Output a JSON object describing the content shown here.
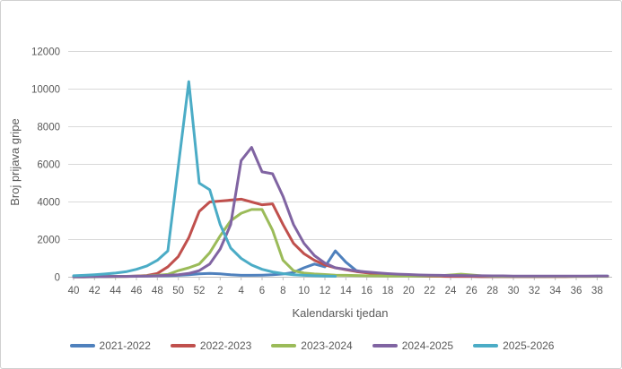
{
  "style": {
    "background": "#FFFFFF",
    "frame_border": "#D0D0D0",
    "text_color": "#595959",
    "gridline_color": "#D9D9D9",
    "axis_color": "#BFBFBF"
  },
  "chart_data": {
    "type": "line",
    "title": "",
    "xlabel": "Kalendarski tjedan",
    "ylabel": "Broj prijava gripe",
    "ylim": [
      0,
      12000
    ],
    "y_ticks": [
      0,
      2000,
      4000,
      6000,
      8000,
      10000,
      12000
    ],
    "x_tick_labels": [
      40,
      42,
      44,
      46,
      48,
      50,
      52,
      2,
      4,
      6,
      8,
      10,
      12,
      14,
      16,
      18,
      20,
      22,
      24,
      26,
      28,
      30,
      32,
      34,
      36,
      38
    ],
    "grid": "horizontal",
    "legend_position": "bottom",
    "categories": [
      40,
      41,
      42,
      43,
      44,
      45,
      46,
      47,
      48,
      49,
      50,
      51,
      52,
      1,
      2,
      3,
      4,
      5,
      6,
      7,
      8,
      9,
      10,
      11,
      12,
      13,
      14,
      15,
      16,
      17,
      18,
      19,
      20,
      21,
      22,
      23,
      24,
      25,
      26,
      27,
      28,
      29,
      30,
      31,
      32,
      33,
      34,
      35,
      36,
      37,
      38,
      39
    ],
    "series": [
      {
        "name": "2021-2022",
        "color": "#4F81BD",
        "values": [
          30,
          30,
          40,
          40,
          50,
          50,
          60,
          60,
          70,
          80,
          100,
          130,
          180,
          200,
          180,
          130,
          100,
          100,
          110,
          130,
          170,
          250,
          500,
          700,
          550,
          1400,
          800,
          350,
          250,
          180,
          130,
          90,
          70,
          60,
          50,
          50,
          40,
          40,
          40,
          30,
          30,
          30,
          30,
          30,
          30,
          30,
          40,
          40,
          50,
          50,
          60,
          60
        ]
      },
      {
        "name": "2022-2023",
        "color": "#C0504D",
        "values": [
          20,
          20,
          30,
          30,
          40,
          40,
          60,
          90,
          200,
          550,
          1100,
          2100,
          3500,
          4000,
          4050,
          4100,
          4150,
          4000,
          3850,
          3900,
          2800,
          1800,
          1250,
          900,
          650,
          500,
          400,
          300,
          230,
          170,
          120,
          90,
          70,
          60,
          50,
          50,
          40,
          40,
          40,
          30,
          30,
          30,
          30,
          30,
          30,
          30,
          30,
          30,
          40,
          40,
          50,
          50
        ]
      },
      {
        "name": "2023-2024",
        "color": "#9BBB59",
        "values": [
          20,
          20,
          20,
          30,
          30,
          40,
          50,
          70,
          100,
          150,
          350,
          500,
          700,
          1300,
          2200,
          3000,
          3400,
          3600,
          3600,
          2500,
          900,
          350,
          220,
          170,
          140,
          110,
          100,
          90,
          80,
          70,
          60,
          60,
          60,
          60,
          70,
          80,
          120,
          160,
          120,
          70,
          50,
          40,
          40,
          40,
          40,
          40,
          40,
          40,
          40,
          40,
          40,
          40
        ]
      },
      {
        "name": "2024-2025",
        "color": "#8064A2",
        "values": [
          20,
          20,
          30,
          30,
          40,
          40,
          50,
          60,
          80,
          100,
          130,
          200,
          350,
          700,
          1500,
          2800,
          6200,
          6900,
          5600,
          5500,
          4300,
          2800,
          1800,
          1150,
          750,
          500,
          420,
          330,
          280,
          230,
          190,
          160,
          140,
          120,
          110,
          100,
          90,
          90,
          80,
          80,
          70,
          70,
          60,
          60,
          60,
          60,
          60,
          60,
          60,
          60,
          60,
          60
        ]
      },
      {
        "name": "2025-2026",
        "color": "#4BACC6",
        "values": [
          80,
          100,
          130,
          170,
          220,
          290,
          420,
          600,
          900,
          1400,
          5900,
          10400,
          5000,
          4650,
          2800,
          1550,
          1000,
          650,
          420,
          280,
          190,
          130,
          100,
          80,
          60,
          50,
          null,
          null,
          null,
          null,
          null,
          null,
          null,
          null,
          null,
          null,
          null,
          null,
          null,
          null,
          null,
          null,
          null,
          null,
          null,
          null,
          null,
          null,
          null,
          null,
          null,
          null
        ]
      }
    ]
  }
}
